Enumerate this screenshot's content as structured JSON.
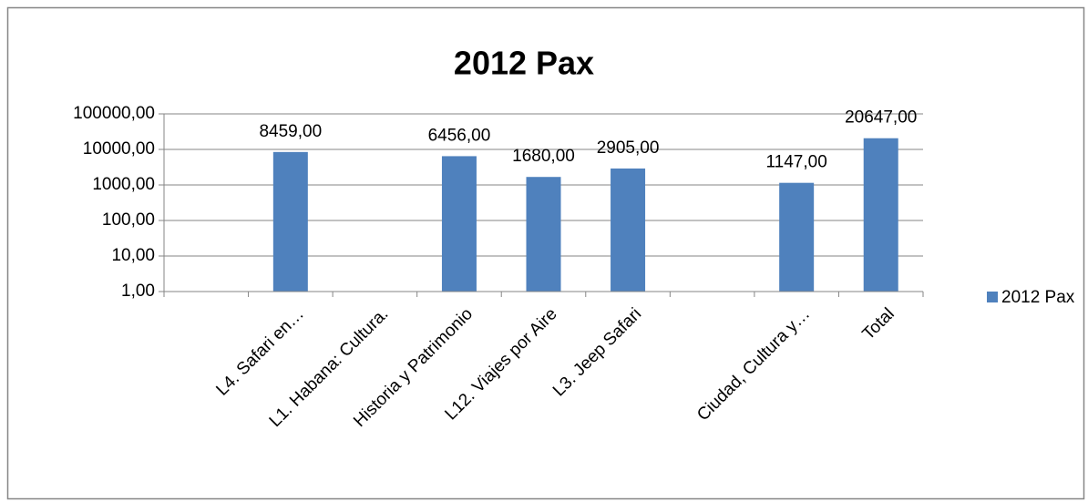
{
  "chart_data": {
    "type": "bar",
    "title": "2012 Pax",
    "categories": [
      null,
      "L4. Safari en…",
      "L1. Habana: Cultura.",
      "Historia y Patrimonio",
      "L12. Viajes por Aire",
      "L3. Jeep Safari",
      null,
      "Ciudad, Cultura y…",
      "Total"
    ],
    "series": [
      {
        "name": "2012 Pax",
        "color": "#4f81bd",
        "values": [
          null,
          8459,
          null,
          6456,
          1680,
          2905,
          null,
          1147,
          20647
        ],
        "value_labels": [
          null,
          "8459,00",
          null,
          "6456,00",
          "1680,00",
          "2905,00",
          null,
          "1147,00",
          "20647,00"
        ]
      }
    ],
    "ylim": [
      1,
      100000
    ],
    "log_scale": true,
    "grid": true,
    "legend": "right",
    "yticks": [
      {
        "value": 1,
        "label": "1,00"
      },
      {
        "value": 10,
        "label": "10,00"
      },
      {
        "value": 100,
        "label": "100,00"
      },
      {
        "value": 1000,
        "label": "1000,00"
      },
      {
        "value": 10000,
        "label": "10000,00"
      },
      {
        "value": 100000,
        "label": "100000,00"
      }
    ]
  }
}
